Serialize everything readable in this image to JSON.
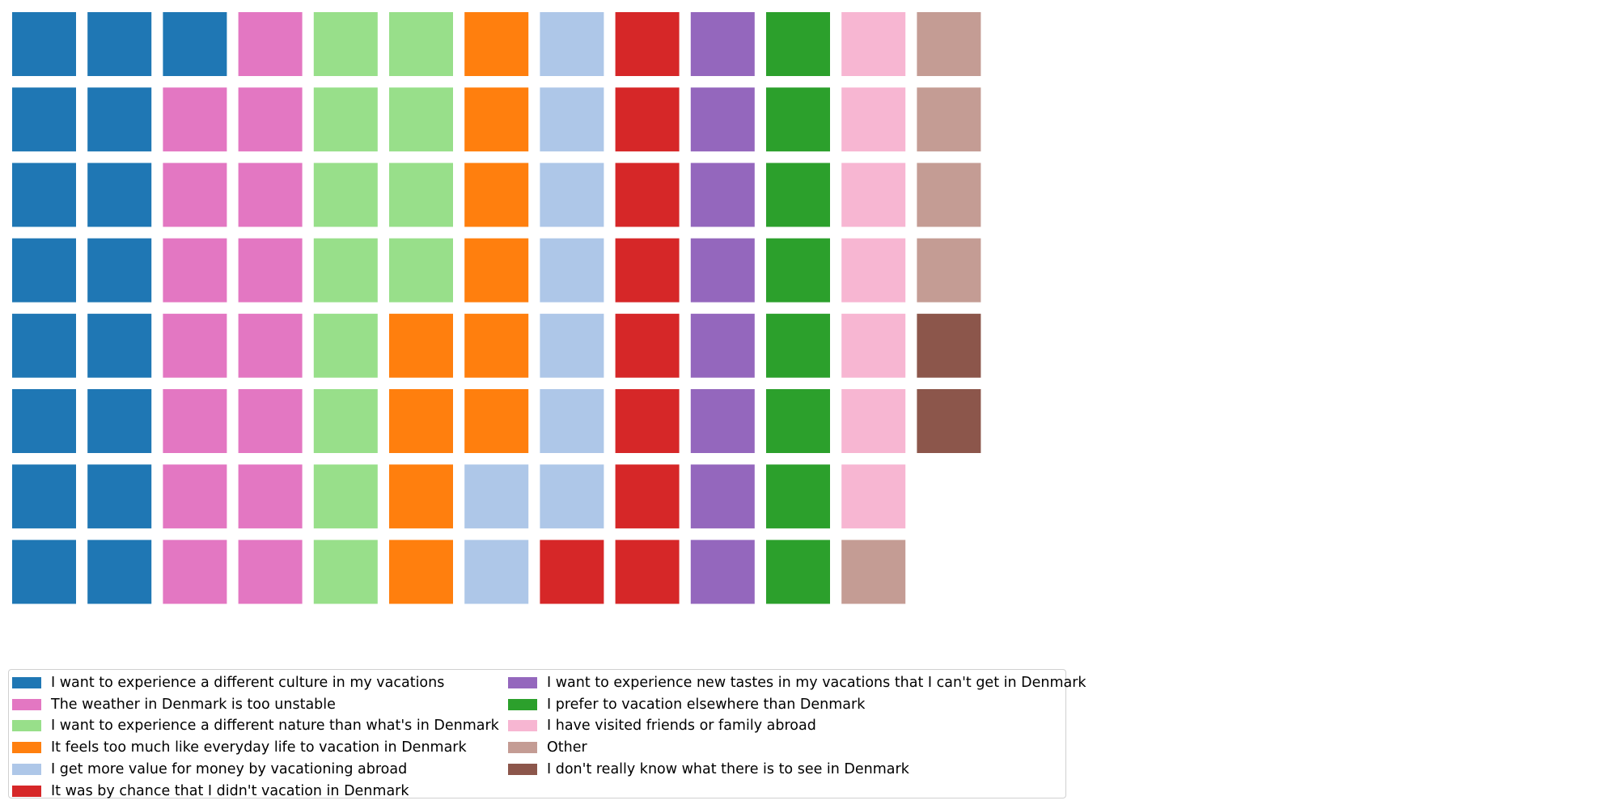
{
  "chart_data": {
    "type": "waffle",
    "title": "",
    "rows": 8,
    "fill_order": "column-major, top to bottom",
    "series": [
      {
        "name": "I want to experience a different culture in my vacations",
        "value": 17,
        "color": "#1f77b4"
      },
      {
        "name": "The weather in Denmark is too unstable",
        "value": 15,
        "color": "#e377c2"
      },
      {
        "name": "I want to experience a different nature than what's in Denmark",
        "value": 12,
        "color": "#98df8a"
      },
      {
        "name": "It feels too much like everyday life to vacation in Denmark",
        "value": 10,
        "color": "#ff7f0e"
      },
      {
        "name": "I get more value for money by vacationing abroad",
        "value": 9,
        "color": "#aec7e8"
      },
      {
        "name": "It was by chance that I didn't vacation in Denmark",
        "value": 9,
        "color": "#d62728"
      },
      {
        "name": "I want to experience new tastes in my vacations that I can't get in Denmark",
        "value": 8,
        "color": "#9467bd"
      },
      {
        "name": "I prefer to vacation elsewhere than Denmark",
        "value": 8,
        "color": "#2ca02c"
      },
      {
        "name": "I have visited friends or family abroad",
        "value": 7,
        "color": "#f7b6d2"
      },
      {
        "name": "Other",
        "value": 5,
        "color": "#c49c94"
      },
      {
        "name": "I don't really know what there is to see in Denmark",
        "value": 2,
        "color": "#8c564b"
      }
    ],
    "legend_placement": "bottom-left, 2 columns",
    "legend_frame": true
  }
}
